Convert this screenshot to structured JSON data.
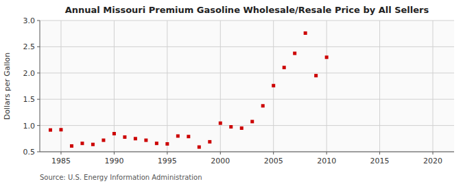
{
  "chart_data": {
    "type": "scatter",
    "title": "Annual Missouri Premium Gasoline Wholesale/Resale Price by All Sellers",
    "y_label": "Dollars per Gallon",
    "source": "Source: U.S. Energy Information Administration",
    "x": [
      1984,
      1985,
      1986,
      1987,
      1988,
      1989,
      1990,
      1991,
      1992,
      1993,
      1994,
      1995,
      1996,
      1997,
      1998,
      1999,
      2000,
      2001,
      2002,
      2003,
      2004,
      2005,
      2006,
      2007,
      2008,
      2009,
      2010
    ],
    "values": [
      0.915,
      0.92,
      0.61,
      0.66,
      0.64,
      0.72,
      0.845,
      0.78,
      0.75,
      0.72,
      0.66,
      0.65,
      0.8,
      0.79,
      0.59,
      0.69,
      1.045,
      0.975,
      0.95,
      1.075,
      1.375,
      1.76,
      2.105,
      2.375,
      2.76,
      1.95,
      2.3
    ],
    "color": "#cc0000",
    "marker": "square",
    "xlim": [
      1983,
      2022
    ],
    "ylim": [
      0.5,
      3.0
    ],
    "xticks": [
      1985,
      1990,
      1995,
      2000,
      2005,
      2010,
      2015,
      2020
    ],
    "yticks": [
      0.5,
      {
        "value": 1,
        "label": "1.0"
      },
      1.5,
      {
        "value": 2,
        "label": "2.0"
      },
      2.5,
      {
        "value": 3,
        "label": "3.0"
      }
    ],
    "grid": true
  }
}
